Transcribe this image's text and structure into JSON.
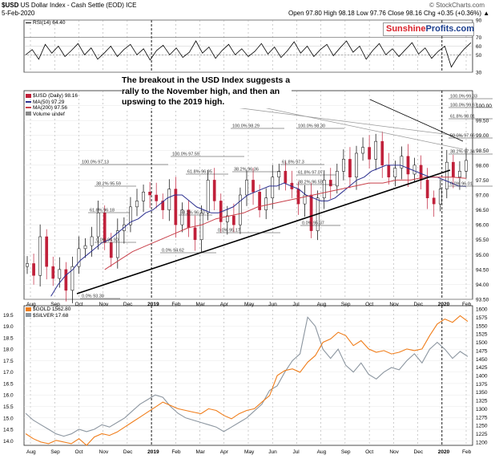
{
  "header": {
    "symbol": "$USD",
    "name": "US Dollar Index - Cash Settle (EOD) ICE",
    "copyright": "© StockCharts.com",
    "date": "5-Feb-2020",
    "quote": "Open 97.80  High 98.18  Low 97.76  Close 98.16  Chg +0.35 (+0.36%) ▲"
  },
  "brand": {
    "part1": "Sunshine",
    "part2": "Profits.com"
  },
  "annotation": "The breakout in the USD Index suggests a rally to the November high, and then an upswing to the 2019 high.",
  "legends": {
    "rsi": "RSI(14) 64.40",
    "usd": "$USD (Daily) 98.16",
    "ma50": "MA(50) 97.29",
    "ma200": "MA(200) 97.56",
    "volume": "Volume undef",
    "gold": "$GOLD 1562.80",
    "silver": "$SILVER 17.68"
  },
  "colors": {
    "up_candle": "#000000",
    "down_candle": "#c0203a",
    "ma50": "#2b2f8f",
    "ma200": "#c8404a",
    "gold": "#f07d1a",
    "silver": "#8c96a0",
    "rsi": "#000000"
  },
  "time_labels": [
    "Aug",
    "Sep",
    "Oct",
    "Nov",
    "Dec",
    "2019",
    "Feb",
    "Mar",
    "Apr",
    "May",
    "Jun",
    "Jul",
    "Aug",
    "Sep",
    "Oct",
    "Nov",
    "Dec",
    "2020",
    "Feb"
  ],
  "chart_data": [
    {
      "type": "line",
      "panel": "rsi",
      "name": "RSI(14)",
      "ylim": [
        30,
        90
      ],
      "y_ticks": [
        90,
        70,
        60,
        50,
        30
      ],
      "values": [
        50,
        56,
        45,
        62,
        52,
        60,
        48,
        55,
        63,
        50,
        58,
        45,
        52,
        60,
        48,
        56,
        62,
        50,
        57,
        44,
        55,
        61,
        50,
        58,
        47,
        53,
        66,
        52,
        59,
        46,
        55,
        62,
        50,
        57,
        48,
        54,
        63,
        51,
        59,
        47,
        55,
        65,
        52,
        60,
        48,
        56,
        62,
        49,
        58,
        66,
        53,
        60,
        45,
        55,
        63,
        50,
        57,
        48,
        56,
        64,
        51,
        58,
        46,
        54,
        60,
        36,
        48,
        57,
        64
      ]
    },
    {
      "type": "line",
      "panel": "usd",
      "name": "$USD (Daily)",
      "ylim": [
        93.5,
        100.5
      ],
      "y_ticks": [
        100.0,
        99.5,
        99.0,
        98.5,
        98.0,
        97.5,
        97.0,
        96.5,
        96.0,
        95.5,
        95.0,
        94.5,
        94.0,
        93.5
      ],
      "close": [
        94.7,
        94.3,
        95.6,
        94.6,
        94.2,
        94.5,
        93.8,
        94.6,
        95.2,
        95.3,
        95.6,
        96.4,
        95.4,
        94.9,
        95.8,
        96.0,
        96.6,
        96.8,
        97.1,
        97.0,
        96.8,
        96.5,
        97.2,
        96.0,
        96.5,
        95.9,
        95.5,
        96.4,
        97.5,
        96.8,
        96.1,
        96.3,
        96.0,
        97.0,
        97.5,
        97.1,
        96.5,
        96.9,
        97.6,
        97.8,
        97.4,
        97.2,
        96.7,
        97.0,
        95.8,
        96.9,
        97.5,
        97.3,
        97.8,
        98.2,
        97.6,
        98.4,
        98.6,
        98.2,
        98.8,
        98.0,
        97.6,
        97.9,
        98.3,
        97.7,
        98.0,
        97.5,
        96.9,
        96.7,
        97.2,
        98.1,
        97.6,
        97.8,
        98.16
      ],
      "ma50": [
        93.6,
        94.0,
        94.3,
        94.5,
        94.8,
        95.0,
        95.2,
        95.4,
        95.5,
        95.7,
        95.9,
        96.1,
        96.2,
        96.4,
        96.5,
        96.7,
        96.9,
        97.0,
        97.0,
        96.8,
        96.6,
        96.5,
        96.4,
        96.4,
        96.5,
        96.6,
        96.8,
        97.0,
        97.1,
        97.2,
        97.3,
        97.3,
        97.4,
        97.3,
        97.2,
        97.0,
        96.9,
        96.8,
        96.8,
        96.9,
        97.1,
        97.3,
        97.5,
        97.6,
        97.8,
        97.9,
        98.0,
        98.0,
        98.0,
        97.9,
        97.8,
        97.7,
        97.6,
        97.6,
        97.5,
        97.4,
        97.3,
        97.29
      ],
      "ma200": [
        94.5,
        94.8,
        95.1,
        95.3,
        95.5,
        95.7,
        95.9,
        96.0,
        96.2,
        96.3,
        96.4,
        96.6,
        96.7,
        96.8,
        96.9,
        97.0,
        97.1,
        97.2,
        97.3,
        97.4,
        97.4,
        97.5,
        97.5,
        97.6,
        97.6,
        97.6,
        97.56
      ],
      "fib_levels": [
        {
          "label": "100.0% 97.13"
        },
        {
          "label": "100.0% 97.59"
        },
        {
          "label": "100.0% 98.29"
        },
        {
          "label": "100.0% 98.30"
        },
        {
          "label": "100.0% 99.33"
        },
        {
          "label": "100.0% 99.67"
        },
        {
          "label": "61.8% 96.18"
        },
        {
          "label": "38.2% 95.59"
        },
        {
          "label": "38.2% 96.70"
        },
        {
          "label": "61.8% 96.95"
        },
        {
          "label": "38.2% 96.36"
        },
        {
          "label": "61.8% 97.3"
        },
        {
          "label": "61.8% 97.07"
        },
        {
          "label": "38.2% 96.59"
        },
        {
          "label": "0.0% 94.90"
        },
        {
          "label": "0.0% 94.62"
        },
        {
          "label": "0.0% 95.17"
        },
        {
          "label": "0.0% 95.37"
        },
        {
          "label": "0.0% 93.30"
        },
        {
          "label": "61.8% 98.01"
        },
        {
          "label": "50.0% 97.66"
        },
        {
          "label": "38.2% 97.34"
        },
        {
          "label": "0.0% 96.01"
        }
      ]
    },
    {
      "type": "line",
      "panel": "metals",
      "y_ticks_left": [
        19.5,
        19.0,
        18.5,
        18.0,
        17.5,
        17.0,
        16.5,
        16.0,
        15.5,
        15.0,
        14.5,
        14.0
      ],
      "y_ticks_right": [
        1600,
        1575,
        1550,
        1525,
        1500,
        1475,
        1450,
        1425,
        1400,
        1375,
        1350,
        1325,
        1300,
        1275,
        1250,
        1225,
        1200
      ],
      "series": [
        {
          "name": "$GOLD",
          "axis": "right",
          "ylim": [
            1190,
            1610
          ],
          "values": [
            1225,
            1210,
            1200,
            1195,
            1205,
            1200,
            1195,
            1210,
            1190,
            1215,
            1225,
            1220,
            1230,
            1245,
            1260,
            1275,
            1290,
            1305,
            1320,
            1310,
            1300,
            1295,
            1290,
            1285,
            1300,
            1295,
            1280,
            1270,
            1285,
            1295,
            1300,
            1320,
            1340,
            1400,
            1415,
            1420,
            1410,
            1440,
            1460,
            1500,
            1510,
            1530,
            1520,
            1490,
            1505,
            1480,
            1470,
            1475,
            1465,
            1470,
            1480,
            1475,
            1480,
            1520,
            1555,
            1570,
            1560,
            1580,
            1562.8
          ]
        },
        {
          "name": "$SILVER",
          "axis": "left",
          "ylim": [
            13.8,
            19.9
          ],
          "values": [
            15.2,
            14.9,
            14.7,
            14.5,
            14.3,
            14.2,
            14.3,
            14.5,
            14.4,
            14.5,
            14.7,
            14.6,
            14.8,
            15.0,
            15.3,
            15.6,
            15.8,
            16.0,
            15.9,
            15.5,
            15.2,
            15.0,
            14.9,
            14.8,
            14.7,
            14.6,
            14.4,
            14.6,
            14.8,
            15.0,
            15.3,
            15.6,
            16.2,
            16.4,
            17.0,
            17.5,
            17.8,
            19.4,
            19.0,
            18.0,
            17.6,
            18.0,
            17.3,
            17.0,
            17.4,
            16.9,
            16.7,
            17.0,
            17.2,
            17.1,
            17.5,
            17.8,
            17.4,
            18.0,
            18.3,
            18.0,
            17.6,
            17.9,
            17.68
          ]
        }
      ]
    }
  ]
}
